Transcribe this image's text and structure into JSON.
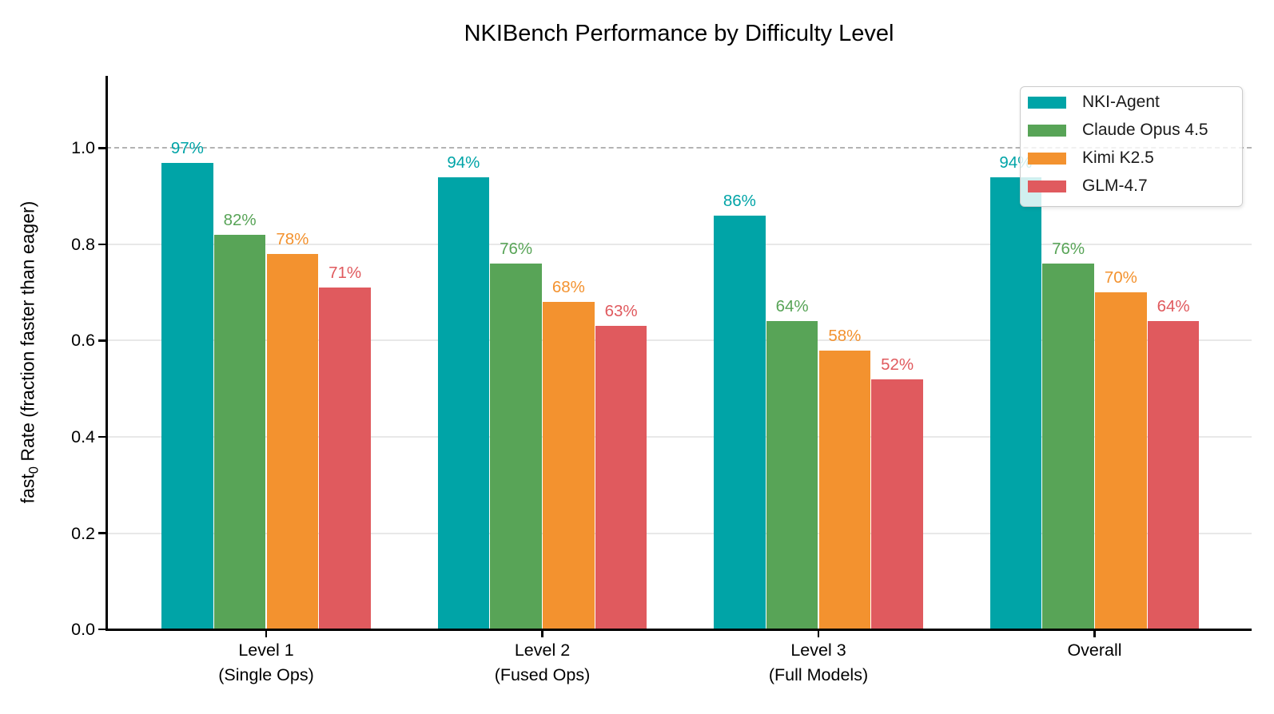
{
  "title": "NKIBench Performance by Difficulty Level",
  "chart_data": {
    "type": "bar",
    "title": "NKIBench Performance by Difficulty Level",
    "ylabel": {
      "prefix": "fast",
      "subscript": "0",
      "suffix": " Rate (fraction faster than eager)"
    },
    "xlabel": "",
    "categories": [
      {
        "line1": "Level 1",
        "line2": "(Single Ops)"
      },
      {
        "line1": "Level 2",
        "line2": "(Fused Ops)"
      },
      {
        "line1": "Level 3",
        "line2": "(Full Models)"
      },
      {
        "line1": "Overall",
        "line2": ""
      }
    ],
    "series": [
      {
        "name": "NKI-Agent",
        "color": "#00A4A7",
        "values": [
          0.97,
          0.94,
          0.86,
          0.94
        ],
        "labels": [
          "97%",
          "94%",
          "86%",
          "94%"
        ]
      },
      {
        "name": "Claude Opus 4.5",
        "color": "#58A457",
        "values": [
          0.82,
          0.76,
          0.64,
          0.76
        ],
        "labels": [
          "82%",
          "76%",
          "64%",
          "76%"
        ]
      },
      {
        "name": "Kimi K2.5",
        "color": "#F3922F",
        "values": [
          0.78,
          0.68,
          0.58,
          0.7
        ],
        "labels": [
          "78%",
          "68%",
          "58%",
          "70%"
        ]
      },
      {
        "name": "GLM-4.7",
        "color": "#E05A5E",
        "values": [
          0.71,
          0.63,
          0.52,
          0.64
        ],
        "labels": [
          "71%",
          "63%",
          "52%",
          "64%"
        ]
      }
    ],
    "yticks": [
      {
        "value": 0.0,
        "label": "0.0"
      },
      {
        "value": 0.2,
        "label": "0.2"
      },
      {
        "value": 0.4,
        "label": "0.4"
      },
      {
        "value": 0.6,
        "label": "0.6"
      },
      {
        "value": 0.8,
        "label": "0.8"
      },
      {
        "value": 1.0,
        "label": "1.0"
      }
    ],
    "ylim": [
      0,
      1.15
    ],
    "grid": "horizontal solid gridlines at 0.2/0.4/0.6/0.8, dashed gray reference line at 1.0",
    "legend_position": "upper right"
  }
}
